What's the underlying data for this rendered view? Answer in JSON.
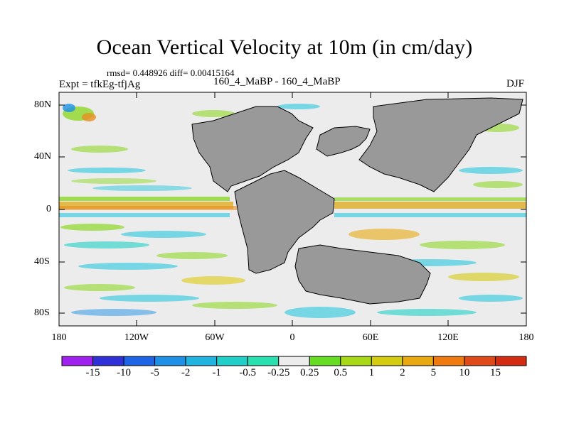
{
  "title": "Ocean Vertical Velocity at 10m (in cm/day)",
  "stats": "rmsd= 0.448926  diff= 0.00415164",
  "expt": "Expt = tfkEg-tfjAg",
  "center_label": "160_4_MaBP - 160_4_MaBP",
  "season": "DJF",
  "lat_labels": [
    "80N",
    "40N",
    "0",
    "40S",
    "80S"
  ],
  "lon_labels": [
    "180",
    "120W",
    "60W",
    "0",
    "60E",
    "120E",
    "180"
  ],
  "colorbar": {
    "labels": [
      "-15",
      "-10",
      "-5",
      "-2",
      "-1",
      "-0.5",
      "-0.25",
      "0.25",
      "0.5",
      "1",
      "2",
      "5",
      "10",
      "15"
    ],
    "colors": [
      "#a020f0",
      "#3030d8",
      "#1e64e6",
      "#1e90e6",
      "#22b4e0",
      "#20d0c8",
      "#28e0b0",
      "#ececec",
      "#66dd22",
      "#a8d818",
      "#d4cc10",
      "#e8aa10",
      "#ee7a10",
      "#e04a18",
      "#d42c12"
    ]
  },
  "colors": {
    "land": "#999999",
    "neutral": "#ececec"
  }
}
